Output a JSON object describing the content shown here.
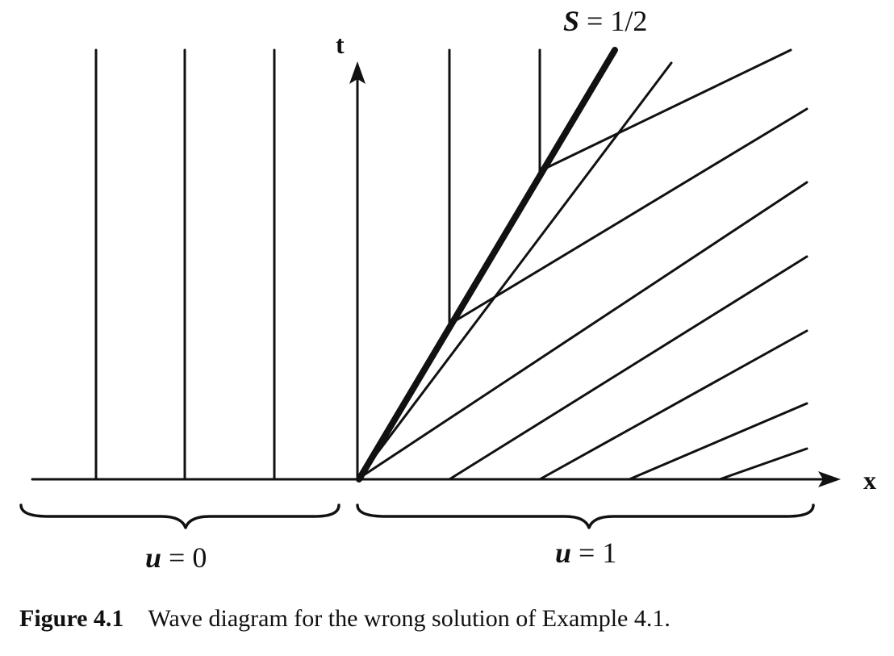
{
  "diagram": {
    "t_axis_label": "t",
    "x_axis_label": "x",
    "shock_label": {
      "var": "S",
      "rest": " = 1/2"
    },
    "left_state_label": {
      "var": "u",
      "rest": " = 0"
    },
    "right_state_label": {
      "var": "u",
      "rest": " = 1"
    }
  },
  "caption": {
    "figure_number": "Figure 4.1",
    "text": "Wave diagram for the wrong solution of Example 4.1."
  }
}
